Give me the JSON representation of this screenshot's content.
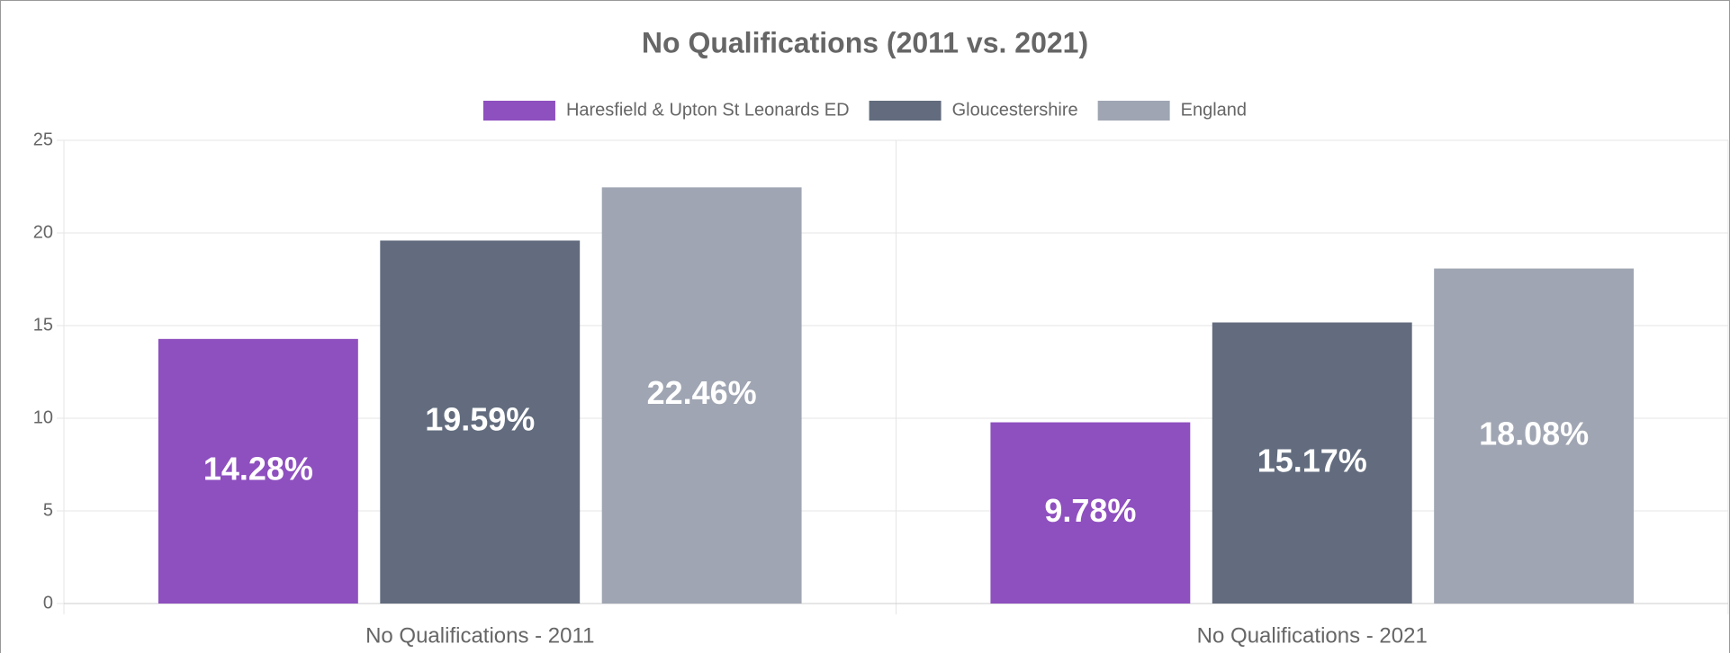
{
  "chart_data": {
    "type": "bar",
    "title": "No Qualifications (2011 vs. 2021)",
    "categories": [
      "No Qualifications - 2011",
      "No Qualifications - 2021"
    ],
    "series": [
      {
        "name": "Haresfield & Upton St Leonards ED",
        "color": "#8e4fbf",
        "values": [
          14.28,
          9.78
        ],
        "value_labels": [
          "14.28%",
          "9.78%"
        ]
      },
      {
        "name": "Gloucestershire",
        "color": "#626c7e",
        "values": [
          19.59,
          15.17
        ],
        "value_labels": [
          "19.59%",
          "15.17%"
        ]
      },
      {
        "name": "England",
        "color": "#9fa5b2",
        "values": [
          22.46,
          18.08
        ],
        "value_labels": [
          "22.46%",
          "18.08%"
        ]
      }
    ],
    "ylim": [
      0,
      25
    ],
    "yticks": [
      0,
      5,
      10,
      15,
      20,
      25
    ],
    "grid": true,
    "legend": "top"
  }
}
